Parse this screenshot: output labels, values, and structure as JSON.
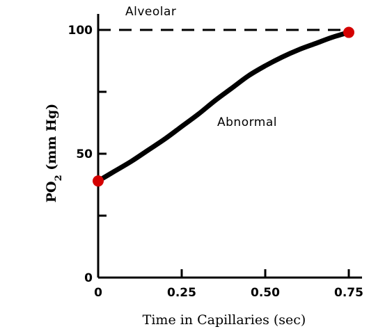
{
  "chart_data": {
    "type": "line",
    "xlabel": "Time in Capillaries (sec)",
    "ylabel_main": "PO",
    "ylabel_sub": "2",
    "ylabel_tail": " (mm Hg)",
    "xlim": [
      0,
      0.75
    ],
    "ylim": [
      0,
      100
    ],
    "x_ticks": [
      {
        "value": 0,
        "label": "0"
      },
      {
        "value": 0.25,
        "label": "0.25"
      },
      {
        "value": 0.5,
        "label": "0.50"
      },
      {
        "value": 0.75,
        "label": "0.75"
      }
    ],
    "y_ticks": [
      {
        "value": 0,
        "label": "0"
      },
      {
        "value": 25,
        "label": ""
      },
      {
        "value": 50,
        "label": "50"
      },
      {
        "value": 75,
        "label": ""
      },
      {
        "value": 100,
        "label": "100"
      }
    ],
    "reference_line": {
      "label": "Alveolar",
      "y": 100
    },
    "series": [
      {
        "name": "Abnormal",
        "x": [
          0,
          0.05,
          0.1,
          0.15,
          0.2,
          0.25,
          0.3,
          0.35,
          0.4,
          0.45,
          0.5,
          0.55,
          0.6,
          0.65,
          0.7,
          0.75
        ],
        "y": [
          39,
          43,
          47,
          51.5,
          56,
          61,
          66,
          71.5,
          76.5,
          81.5,
          85.5,
          89,
          92,
          94.5,
          97,
          99
        ]
      }
    ],
    "endpoints": [
      {
        "x": 0,
        "y": 39
      },
      {
        "x": 0.75,
        "y": 99
      }
    ],
    "colors": {
      "line": "#000000",
      "endpoint": "#d40000",
      "axis": "#000000"
    },
    "grid": false,
    "legend": "none"
  }
}
